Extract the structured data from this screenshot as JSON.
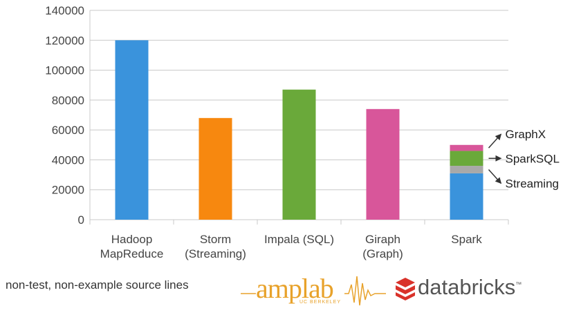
{
  "chart_data": {
    "type": "bar",
    "categories": [
      [
        "Hadoop",
        "MapReduce"
      ],
      [
        "Storm",
        "(Streaming)"
      ],
      [
        "Impala (SQL)"
      ],
      [
        "Giraph",
        "(Graph)"
      ],
      [
        "Spark"
      ]
    ],
    "values": [
      120000,
      68000,
      87000,
      74000,
      50000
    ],
    "colors": [
      "#3a93dc",
      "#f7880f",
      "#6aa93a",
      "#d8569a"
    ],
    "stacked": {
      "category_index": 4,
      "segments": [
        {
          "value": 31000,
          "color": "#3a93dc"
        },
        {
          "value": 5000,
          "color": "#a9a9a9"
        },
        {
          "value": 10000,
          "color": "#6aa93a"
        },
        {
          "value": 4000,
          "color": "#d8569a"
        }
      ]
    },
    "annotations": [
      "GraphX",
      "SparkSQL",
      "Streaming"
    ],
    "ylim": [
      0,
      140000
    ],
    "yticks": [
      0,
      20000,
      40000,
      60000,
      80000,
      100000,
      120000,
      140000
    ],
    "grid": true
  },
  "footer": {
    "caption": "non-test, non-example source lines",
    "amplab_word": "amplab",
    "amplab_sub": "UC BERKELEY",
    "databricks_word": "databricks",
    "databricks_tm": "™",
    "amplab_color": "#e8a22b",
    "databricks_color": "#d9322a"
  }
}
